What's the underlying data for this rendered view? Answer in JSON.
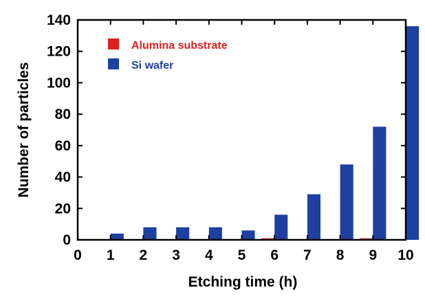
{
  "chart_data": {
    "type": "bar",
    "xlabel": "Etching time (h)",
    "ylabel": "Number of particles",
    "xlim": [
      0,
      10
    ],
    "ylim": [
      0,
      140
    ],
    "xticks": [
      "0",
      "1",
      "2",
      "3",
      "4",
      "5",
      "6",
      "7",
      "8",
      "9",
      "10"
    ],
    "yticks": [
      "0",
      "20",
      "40",
      "60",
      "80",
      "100",
      "120",
      "140"
    ],
    "grid": false,
    "legend_position": "top-left",
    "series": [
      {
        "name": "Alumina substrate",
        "color": "#e02020",
        "label_color": "#e02020",
        "x": [
          1,
          2,
          3,
          4,
          5,
          6,
          7,
          8,
          9,
          10
        ],
        "values": [
          0,
          0,
          0,
          0,
          0,
          1,
          0,
          0,
          1,
          0
        ]
      },
      {
        "name": "Si wafer",
        "color": "#1e40a0",
        "label_color": "#1e40a0",
        "x": [
          1,
          2,
          3,
          4,
          5,
          6,
          7,
          8,
          9,
          10
        ],
        "values": [
          4,
          8,
          8,
          8,
          6,
          16,
          29,
          48,
          72,
          136
        ]
      }
    ]
  }
}
